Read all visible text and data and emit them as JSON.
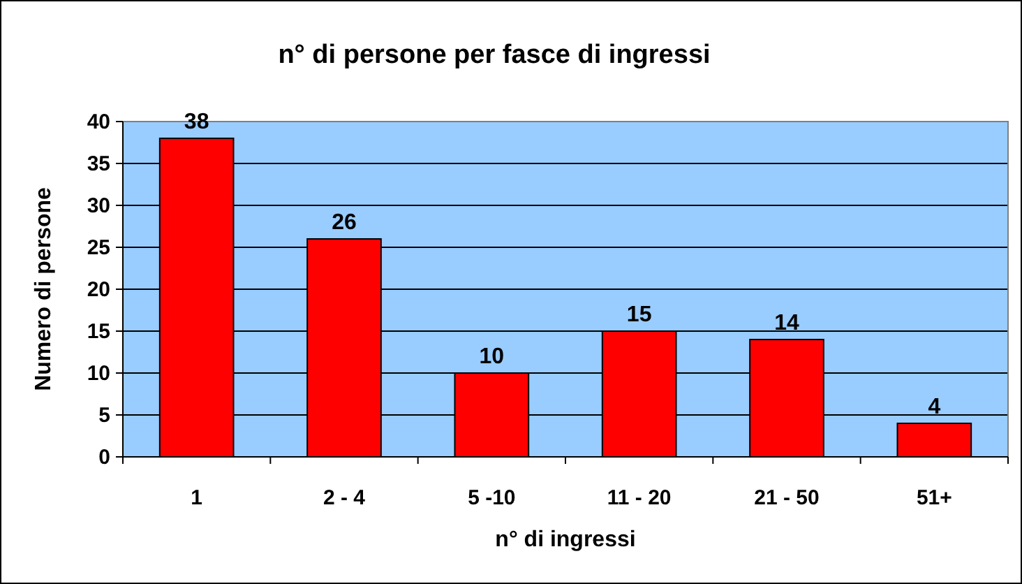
{
  "chart_data": {
    "type": "bar",
    "title": "n° di persone per fasce di ingressi",
    "xlabel": "n° di ingressi",
    "ylabel": "Numero di persone",
    "categories": [
      "1",
      "2 - 4",
      "5 -10",
      "11 - 20",
      "21 - 50",
      "51+"
    ],
    "values": [
      38,
      26,
      10,
      15,
      14,
      4
    ],
    "color": "#ff0000",
    "ylim": [
      0,
      40
    ],
    "yticks": [
      0,
      5,
      10,
      15,
      20,
      25,
      30,
      35,
      40
    ],
    "grid": "y",
    "data_labels": true
  }
}
